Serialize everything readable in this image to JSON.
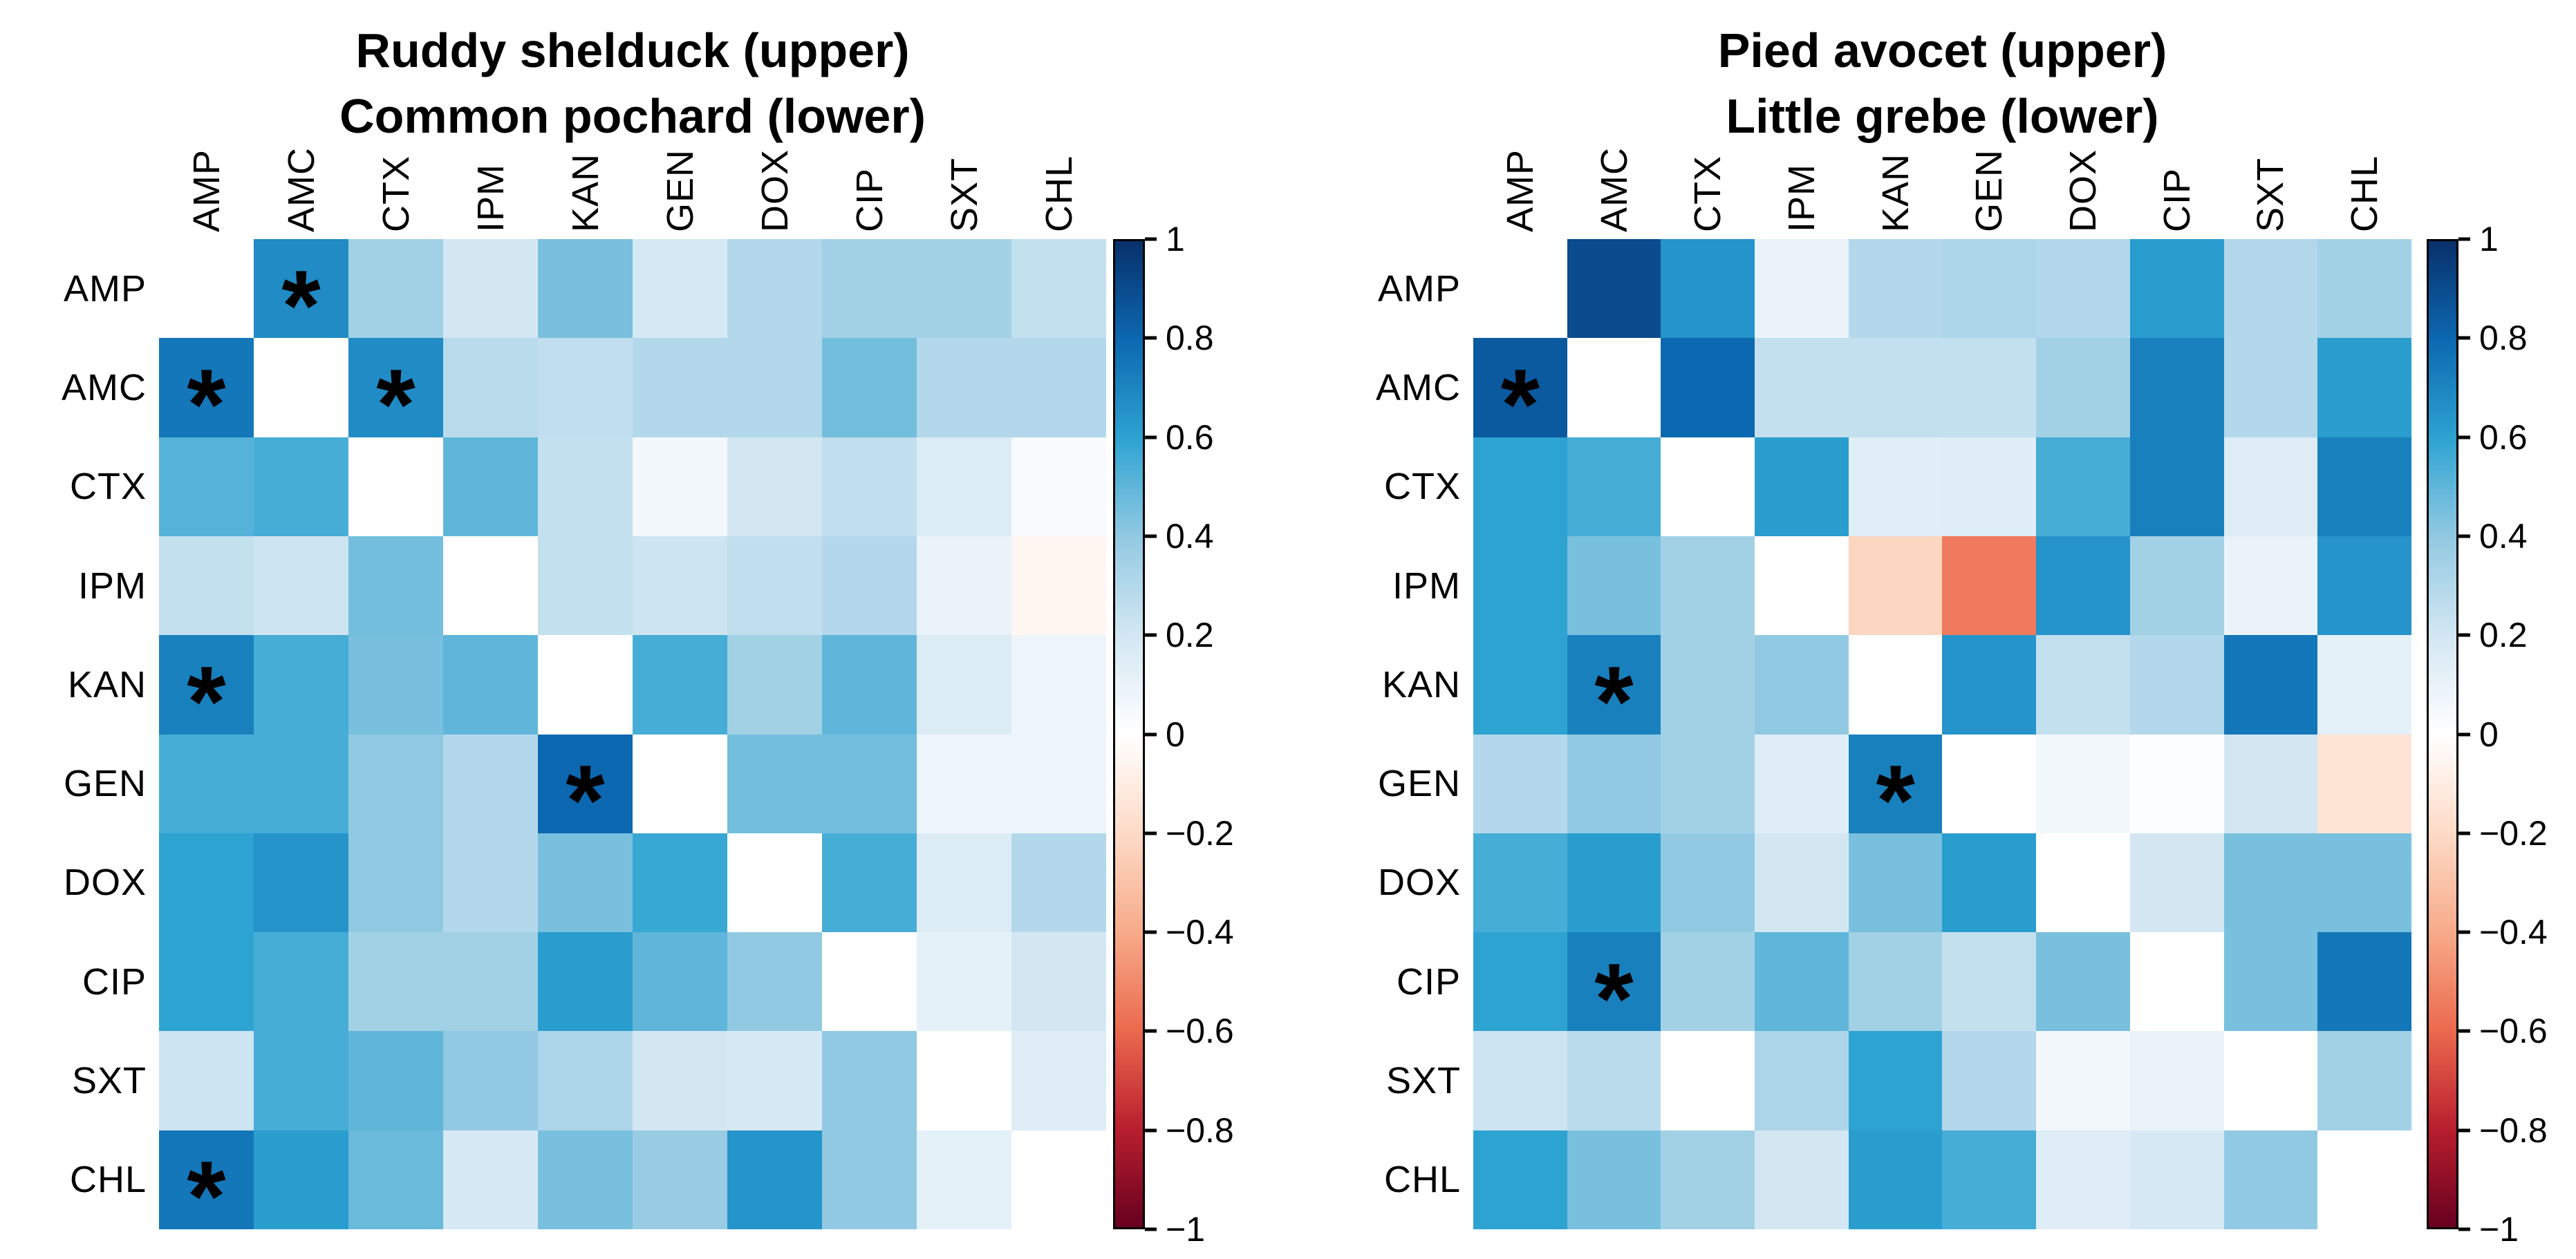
{
  "figure": {
    "background": "#ffffff",
    "text_color": "#000000"
  },
  "colormap": {
    "na_color": "#ffffff",
    "stops": [
      [
        -1.0,
        "#67001f"
      ],
      [
        -0.8,
        "#b91f2e"
      ],
      [
        -0.6,
        "#ec6a4e"
      ],
      [
        -0.4,
        "#f7ab8a"
      ],
      [
        -0.2,
        "#fddbc7"
      ],
      [
        0.0,
        "#ffffff"
      ],
      [
        0.2,
        "#d3e7f3"
      ],
      [
        0.4,
        "#92c9e2"
      ],
      [
        0.6,
        "#2da3d2"
      ],
      [
        0.8,
        "#0c68b0"
      ],
      [
        1.0,
        "#08306b"
      ]
    ]
  },
  "chart_data": [
    {
      "type": "heatmap",
      "title_upper": "Ruddy shelduck (upper)",
      "title_lower": "Common pochard (lower)",
      "labels": [
        "AMP",
        "AMC",
        "CTX",
        "IPM",
        "KAN",
        "GEN",
        "DOX",
        "CIP",
        "SXT",
        "CHL"
      ],
      "values": [
        [
          null,
          0.68,
          0.35,
          0.2,
          0.45,
          0.18,
          0.3,
          0.35,
          0.35,
          0.25
        ],
        [
          0.75,
          null,
          0.68,
          0.28,
          0.26,
          0.3,
          0.3,
          0.46,
          0.3,
          0.3
        ],
        [
          0.52,
          0.55,
          null,
          0.5,
          0.25,
          0.06,
          0.2,
          0.26,
          0.16,
          0.03
        ],
        [
          0.25,
          0.22,
          0.46,
          null,
          0.25,
          0.22,
          0.26,
          0.3,
          0.1,
          -0.05
        ],
        [
          0.72,
          0.55,
          0.45,
          0.5,
          null,
          0.55,
          0.35,
          0.5,
          0.16,
          0.08
        ],
        [
          0.55,
          0.55,
          0.4,
          0.3,
          0.8,
          null,
          0.46,
          0.46,
          0.08,
          0.08
        ],
        [
          0.6,
          0.65,
          0.4,
          0.3,
          0.45,
          0.58,
          null,
          0.55,
          0.16,
          0.3
        ],
        [
          0.6,
          0.55,
          0.35,
          0.35,
          0.62,
          0.5,
          0.4,
          null,
          0.12,
          0.2
        ],
        [
          0.22,
          0.55,
          0.5,
          0.4,
          0.32,
          0.2,
          0.18,
          0.4,
          null,
          0.15
        ],
        [
          0.75,
          0.62,
          0.48,
          0.18,
          0.45,
          0.38,
          0.65,
          0.4,
          0.12,
          null
        ]
      ],
      "significant_cells": [
        [
          0,
          1
        ],
        [
          1,
          0
        ],
        [
          1,
          2
        ],
        [
          4,
          0
        ],
        [
          5,
          4
        ],
        [
          9,
          0
        ]
      ],
      "significance_marker": "*",
      "colorbar_range": [
        -1,
        1
      ],
      "colorbar_ticks": [
        "1",
        "0.8",
        "0.6",
        "0.4",
        "0.2",
        "0",
        "−0.2",
        "−0.4",
        "−0.6",
        "−0.8",
        "−1"
      ]
    },
    {
      "type": "heatmap",
      "title_upper": "Pied avocet (upper)",
      "title_lower": "Little grebe (lower)",
      "labels": [
        "AMP",
        "AMC",
        "CTX",
        "IPM",
        "KAN",
        "GEN",
        "DOX",
        "CIP",
        "SXT",
        "CHL"
      ],
      "values": [
        [
          null,
          0.9,
          0.65,
          0.1,
          0.3,
          0.32,
          0.3,
          0.62,
          0.3,
          0.35
        ],
        [
          0.85,
          null,
          0.8,
          0.25,
          0.25,
          0.25,
          0.35,
          0.72,
          0.3,
          0.62
        ],
        [
          0.6,
          0.55,
          null,
          0.62,
          0.14,
          0.15,
          0.55,
          0.72,
          0.15,
          0.72
        ],
        [
          0.6,
          0.45,
          0.35,
          null,
          -0.22,
          -0.55,
          0.65,
          0.35,
          0.1,
          0.65
        ],
        [
          0.6,
          0.72,
          0.35,
          0.4,
          null,
          0.65,
          0.25,
          0.3,
          0.75,
          0.12
        ],
        [
          0.3,
          0.4,
          0.35,
          0.15,
          0.72,
          null,
          0.06,
          0.02,
          0.2,
          -0.15
        ],
        [
          0.55,
          0.62,
          0.4,
          0.2,
          0.45,
          0.62,
          null,
          0.2,
          0.45,
          0.45
        ],
        [
          0.6,
          0.72,
          0.35,
          0.5,
          0.35,
          0.25,
          0.45,
          null,
          0.45,
          0.75
        ],
        [
          0.22,
          0.28,
          0.0,
          0.32,
          0.6,
          0.3,
          0.06,
          0.1,
          null,
          0.35
        ],
        [
          0.6,
          0.45,
          0.35,
          0.2,
          0.62,
          0.55,
          0.15,
          0.18,
          0.4,
          null
        ]
      ],
      "significant_cells": [
        [
          1,
          0
        ],
        [
          4,
          1
        ],
        [
          5,
          4
        ],
        [
          7,
          1
        ]
      ],
      "significance_marker": "*",
      "colorbar_range": [
        -1,
        1
      ],
      "colorbar_ticks": [
        "1",
        "0.8",
        "0.6",
        "0.4",
        "0.2",
        "0",
        "−0.2",
        "−0.4",
        "−0.6",
        "−0.8",
        "−1"
      ]
    }
  ]
}
